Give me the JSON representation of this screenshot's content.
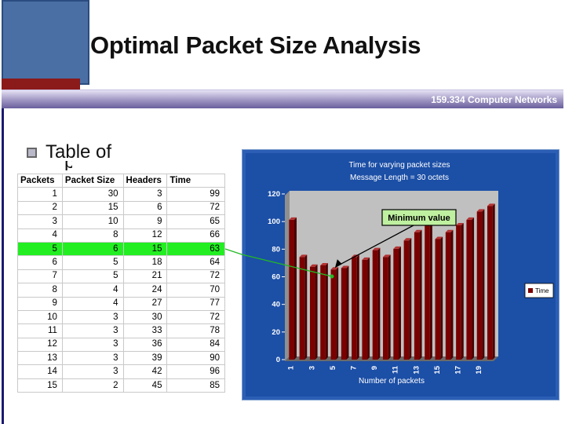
{
  "slide": {
    "title": "Optimal Packet Size Analysis",
    "course": "159.334 Computer Networks",
    "bullet_heading": "Table of",
    "bullet_heading_tail": "p"
  },
  "table": {
    "headers": [
      "Packets",
      "Packet Size",
      "Headers",
      "Time"
    ],
    "rows": [
      [
        "1",
        "30",
        "3",
        "99"
      ],
      [
        "2",
        "15",
        "6",
        "72"
      ],
      [
        "3",
        "10",
        "9",
        "65"
      ],
      [
        "4",
        "8",
        "12",
        "66"
      ],
      [
        "5",
        "6",
        "15",
        "63"
      ],
      [
        "6",
        "5",
        "18",
        "64"
      ],
      [
        "7",
        "5",
        "21",
        "72"
      ],
      [
        "8",
        "4",
        "24",
        "70"
      ],
      [
        "9",
        "4",
        "27",
        "77"
      ],
      [
        "10",
        "3",
        "30",
        "72"
      ],
      [
        "11",
        "3",
        "33",
        "78"
      ],
      [
        "12",
        "3",
        "36",
        "84"
      ],
      [
        "13",
        "3",
        "39",
        "90"
      ],
      [
        "14",
        "3",
        "42",
        "96"
      ],
      [
        "15",
        "2",
        "45",
        "85"
      ]
    ],
    "highlight_row_index": 4,
    "highlight_color": "#22ee22"
  },
  "chart_data": {
    "type": "bar",
    "title": "Time for varying packet sizes",
    "subtitle": "Message Length = 30 octets",
    "xlabel": "Number of packets",
    "ylabel": "",
    "x": [
      1,
      2,
      3,
      4,
      5,
      6,
      7,
      8,
      9,
      10,
      11,
      12,
      13,
      14,
      15,
      16,
      17,
      18,
      19,
      20
    ],
    "x_tick_labels": [
      "1",
      "3",
      "5",
      "7",
      "9",
      "11",
      "13",
      "15",
      "17",
      "19"
    ],
    "series": [
      {
        "name": "Time",
        "values": [
          99,
          72,
          65,
          66,
          63,
          64,
          72,
          70,
          77,
          72,
          78,
          84,
          90,
          96,
          85,
          90,
          95,
          99,
          105,
          109
        ]
      }
    ],
    "ylim": [
      0,
      120
    ],
    "y_ticks": [
      0,
      20,
      40,
      60,
      80,
      100,
      120
    ],
    "grid": false,
    "legend_position": "right",
    "annotation": {
      "text": "Minimum value",
      "target_x": 5
    },
    "colors": {
      "panel_background": "#1c4fa6",
      "plot_background": "#c0c0c0",
      "bar": "#7a0000",
      "bar_light": "#b33333",
      "annotation_box": "#bff0a0",
      "connector_line": "#22bb22"
    }
  }
}
